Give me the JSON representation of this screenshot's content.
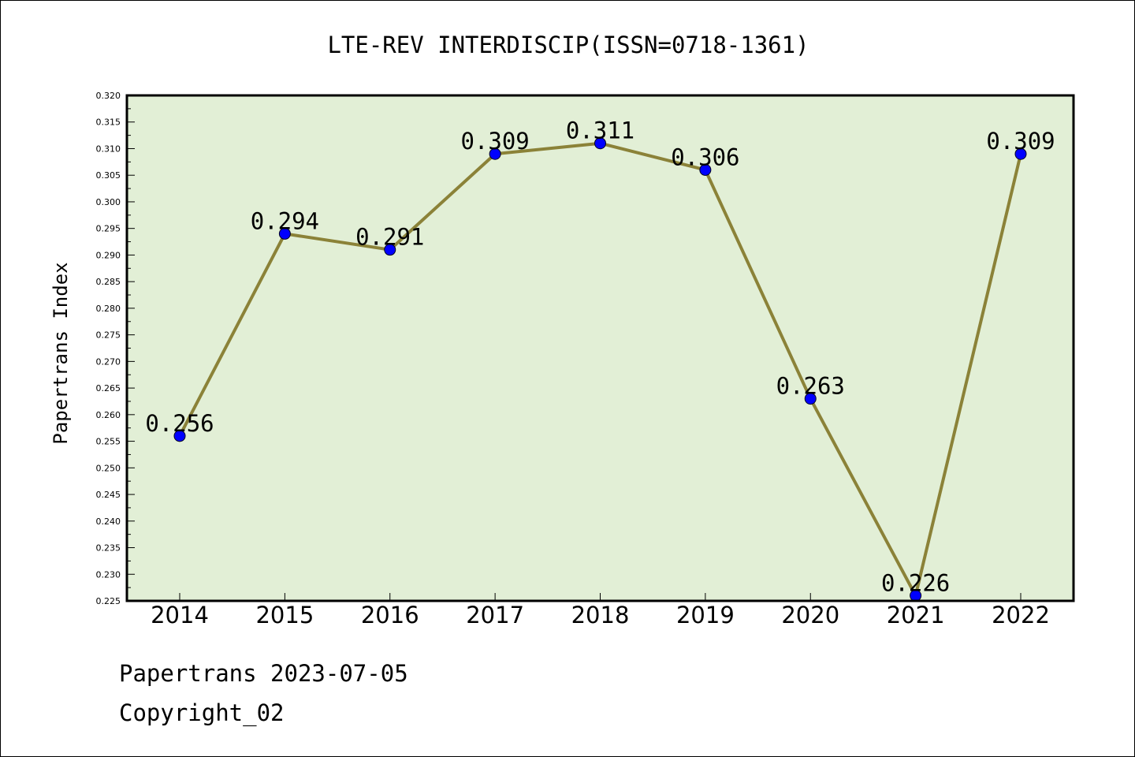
{
  "chart_data": {
    "type": "line",
    "title": "LTE-REV INTERDISCIP(ISSN=0718-1361)",
    "xlabel": "",
    "ylabel": "Papertrans Index",
    "categories": [
      "2014",
      "2015",
      "2016",
      "2017",
      "2018",
      "2019",
      "2020",
      "2021",
      "2022"
    ],
    "series": [
      {
        "values": [
          0.256,
          0.294,
          0.291,
          0.309,
          0.311,
          0.306,
          0.263,
          0.226,
          0.309
        ],
        "labels": [
          "0.256",
          "0.294",
          "0.291",
          "0.309",
          "0.311",
          "0.306",
          "0.263",
          "0.226",
          "0.309"
        ]
      }
    ],
    "ylim": [
      0.225,
      0.32
    ],
    "yticks": [
      "0.225",
      "0.230",
      "0.235",
      "0.240",
      "0.245",
      "0.250",
      "0.255",
      "0.260",
      "0.265",
      "0.270",
      "0.275",
      "0.280",
      "0.285",
      "0.290",
      "0.295",
      "0.300",
      "0.305",
      "0.310",
      "0.315",
      "0.320"
    ],
    "grid": false,
    "legend": "none",
    "colors": {
      "plot_background": "#e2efd6",
      "line": "#8b8238",
      "marker": "#0000ff",
      "frame": "#000000"
    }
  },
  "footer": {
    "date_line": "Papertrans 2023-07-05",
    "copyright": "Copyright_02"
  }
}
